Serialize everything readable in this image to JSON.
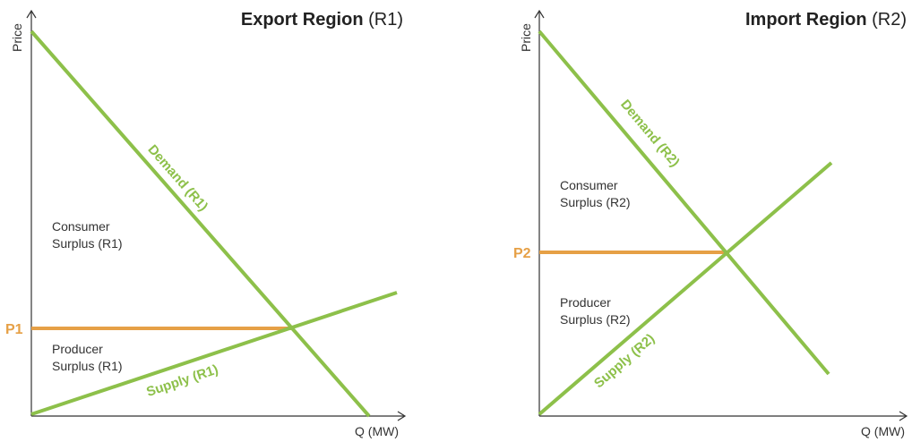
{
  "panels": [
    {
      "title": "Export Region",
      "title_suffix": "(R1)",
      "y_axis_label": "Price",
      "x_axis_label": "Q (MW)",
      "demand_label": "Demand (R1)",
      "supply_label": "Supply (R1)",
      "price_label": "P1",
      "consumer_surplus": [
        "Consumer",
        "Surplus (R1)"
      ],
      "producer_surplus": [
        "Producer",
        "Surplus (R1)"
      ]
    },
    {
      "title": "Import Region",
      "title_suffix": "(R2)",
      "y_axis_label": "Price",
      "x_axis_label": "Q (MW)",
      "demand_label": "Demand (R2)",
      "supply_label": "Supply (R2)",
      "price_label": "P2",
      "consumer_surplus": [
        "Consumer",
        "Surplus (R2)"
      ],
      "producer_surplus": [
        "Producer",
        "Surplus (R2)"
      ]
    }
  ]
}
